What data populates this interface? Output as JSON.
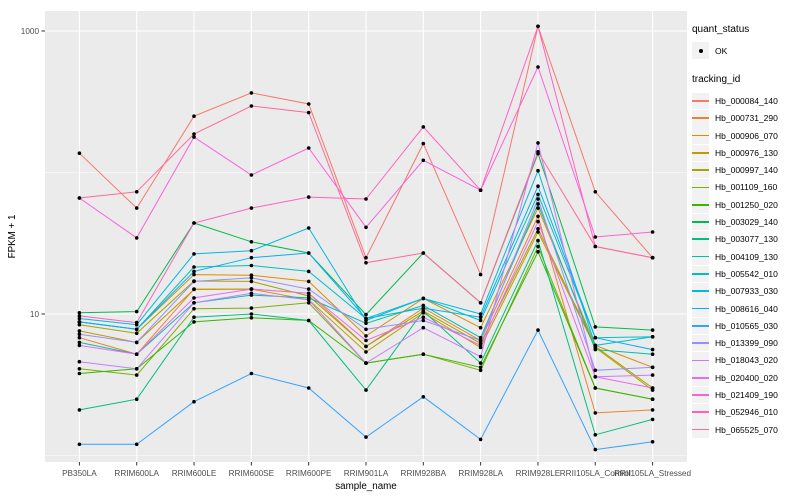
{
  "chart_data": {
    "type": "line",
    "title": "",
    "xlabel": "sample_name",
    "ylabel": "FPKM + 1",
    "y_scale": "log10",
    "ylim": [
      0.9,
      1385
    ],
    "grid": "on",
    "legend_position": "right",
    "panel_bg": "#EBEBEB",
    "grid_color": "#FFFFFF",
    "axis_text_color": "#4D4D4D",
    "tick_color": "#333333",
    "point_color": "#000000",
    "y_major_ticks": [
      {
        "label": "10",
        "value": 10
      },
      {
        "label": "1000",
        "value": 1000
      }
    ],
    "y_minor_gridlines": [
      1,
      100
    ],
    "categories": [
      "PB350LA",
      "RRIM600LA",
      "RRIM600LE",
      "RRIM600SE",
      "RRIM600PE",
      "RRIM901LA",
      "RRIM928BA",
      "RRIM928LA",
      "RRIM928LE",
      "RRII105LA_Control",
      "RRII105LA_Stressed"
    ],
    "legend": {
      "quant_title": "quant_status",
      "quant_items": [
        {
          "label": "OK",
          "shape": "point",
          "color": "#000000"
        }
      ],
      "series_title": "tracking_id"
    },
    "series": [
      {
        "name": "Hb_000084_140",
        "color": "#F8766D",
        "values": [
          137,
          56,
          250,
          365,
          305,
          25,
          160,
          19,
          1080,
          73,
          25
        ]
      },
      {
        "name": "Hb_000731_290",
        "color": "#EA8331",
        "values": [
          6.8,
          5.2,
          15,
          15,
          14,
          5.9,
          11,
          6.5,
          49,
          2.0,
          2.1
        ]
      },
      {
        "name": "Hb_000906_070",
        "color": "#D89000",
        "values": [
          8.8,
          7.8,
          19,
          18.8,
          17,
          7.0,
          12.9,
          8.0,
          56,
          6.0,
          4.2
        ]
      },
      {
        "name": "Hb_000976_130",
        "color": "#C09B00",
        "values": [
          7.6,
          6.3,
          14.9,
          15,
          12.6,
          5.4,
          10.2,
          5.8,
          38,
          5.8,
          2.9
        ]
      },
      {
        "name": "Hb_000997_140",
        "color": "#A3A500",
        "values": [
          8.4,
          7.3,
          17.1,
          17,
          13.4,
          5.9,
          10.5,
          6.2,
          40,
          5.9,
          3.0
        ]
      },
      {
        "name": "Hb_001109_160",
        "color": "#7CAE00",
        "values": [
          4.1,
          3.7,
          10.9,
          11,
          12,
          4.5,
          5.2,
          4.0,
          30,
          3.0,
          2.5
        ]
      },
      {
        "name": "Hb_001250_020",
        "color": "#39B600",
        "values": [
          3.8,
          4.1,
          8.8,
          9.4,
          9.0,
          4.5,
          5.2,
          4.2,
          27.5,
          3.0,
          2.5
        ]
      },
      {
        "name": "Hb_003029_140",
        "color": "#00BB4E",
        "values": [
          10.2,
          10.4,
          44,
          32.4,
          27,
          9.9,
          27,
          12,
          136,
          8.1,
          7.7
        ]
      },
      {
        "name": "Hb_003077_130",
        "color": "#00BF7D",
        "values": [
          2.1,
          2.5,
          9.5,
          10,
          9.0,
          2.9,
          10.5,
          4.5,
          33,
          1.4,
          1.8
        ]
      },
      {
        "name": "Hb_004109_130",
        "color": "#00C1A3",
        "values": [
          6.3,
          5.2,
          12,
          13.6,
          13,
          8.6,
          11.5,
          6.8,
          60,
          5.6,
          5.2
        ]
      },
      {
        "name": "Hb_005542_010",
        "color": "#00BFC4",
        "values": [
          8.8,
          7.8,
          21.5,
          22,
          20,
          9.3,
          12.9,
          9.0,
          70,
          6.8,
          6.9
        ]
      },
      {
        "name": "Hb_007933_030",
        "color": "#00BAE0",
        "values": [
          9.3,
          8.4,
          26.6,
          28,
          40.5,
          9.0,
          12.9,
          10,
          103,
          6.0,
          6.9
        ]
      },
      {
        "name": "Hb_008616_040",
        "color": "#00B0F6",
        "values": [
          8.8,
          7.8,
          20,
          25,
          27,
          9.3,
          11,
          9.5,
          80,
          6.8,
          5.6
        ]
      },
      {
        "name": "Hb_010565_030",
        "color": "#35A2FF",
        "values": [
          1.2,
          1.2,
          2.4,
          3.8,
          3.0,
          1.35,
          2.6,
          1.3,
          7.7,
          1.1,
          1.25
        ]
      },
      {
        "name": "Hb_013399_090",
        "color": "#9590FF",
        "values": [
          7.2,
          6.3,
          17,
          18,
          15,
          7.8,
          9.0,
          6.5,
          65,
          4.0,
          4.2
        ]
      },
      {
        "name": "Hb_018043_020",
        "color": "#C77CFF",
        "values": [
          4.6,
          4.1,
          12,
          14,
          12.6,
          4.5,
          8.0,
          5.0,
          162,
          3.6,
          3.7
        ]
      },
      {
        "name": "Hb_020400_020",
        "color": "#E76BF3",
        "values": [
          6.0,
          5.2,
          13,
          15,
          14,
          6.5,
          9.5,
          6.0,
          45,
          3.6,
          3.0
        ]
      },
      {
        "name": "Hb_021409_190",
        "color": "#FA62DB",
        "values": [
          66,
          34.5,
          178,
          96,
          149,
          41,
          122,
          75,
          557,
          35,
          38
        ]
      },
      {
        "name": "Hb_052946_010",
        "color": "#FF62BC",
        "values": [
          9.7,
          8.7,
          44,
          56,
          67,
          65,
          210,
          75,
          1080,
          30,
          25
        ]
      },
      {
        "name": "Hb_065525_070",
        "color": "#FF6A98",
        "values": [
          66,
          73,
          187,
          295,
          265,
          23,
          27,
          12,
          140,
          30,
          25
        ]
      }
    ]
  }
}
